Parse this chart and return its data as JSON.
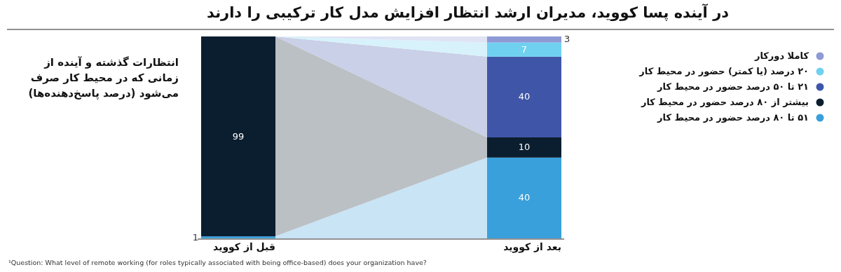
{
  "chart_data": {
    "type": "bar",
    "stacked": true,
    "title": "در آینده پسا کووید، مدیران ارشد انتظار افزایش مدل کار ترکیبی را دارند",
    "subtitle": "انتظارات گذشته و آینده از زمانی که در محیط کار صرف می‌شود (درصد پاسخ‌دهنده‌ها)",
    "annotations": [
      "¹Question: What level of remote working (for roles typically associated with being office-based) does your organization have?"
    ],
    "categories": [
      "قبل از کووید",
      "بعد از کووید"
    ],
    "legend": "right",
    "series": [
      {
        "name": "۵۱ تا ۸۰ درصد حضور در محیط کار",
        "color": "#3aa0dc",
        "values": [
          1,
          40
        ],
        "value_labels": [
          "1",
          "40"
        ]
      },
      {
        "name": "بیشتر از ۸۰ درصد حضور در محیط کار",
        "color": "#0b1e30",
        "values": [
          99,
          10
        ],
        "value_labels": [
          "99",
          "10"
        ]
      },
      {
        "name": "۲۱ تا ۵۰ درصد حضور در محیط کار",
        "color": "#3f56a8",
        "values": [
          0,
          40
        ],
        "value_labels": [
          null,
          "40"
        ]
      },
      {
        "name": "۲۰ درصد (یا کمتر) حضور در محیط کار",
        "color": "#6fd0f0",
        "values": [
          0,
          7
        ],
        "value_labels": [
          null,
          "7"
        ]
      },
      {
        "name": "کاملا دورکار",
        "color": "#8e9ad6",
        "values": [
          0,
          3
        ],
        "value_labels": [
          null,
          "3"
        ]
      }
    ]
  }
}
